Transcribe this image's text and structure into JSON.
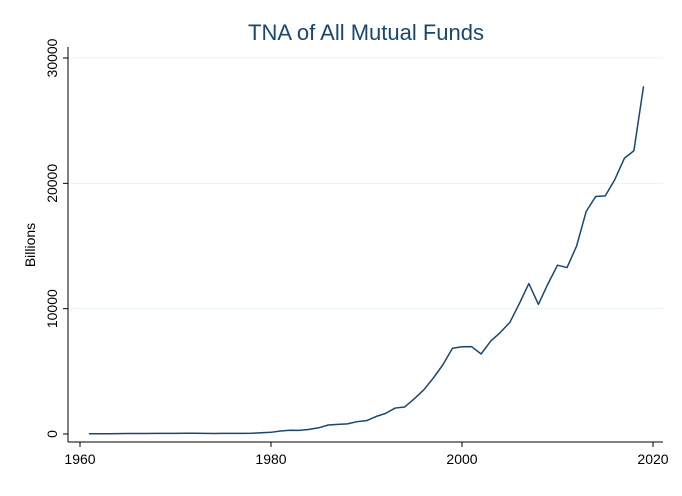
{
  "chart_data": {
    "type": "line",
    "title": "TNA of All Mutual Funds",
    "xlabel": "",
    "ylabel": "Billions",
    "xlim": [
      1960,
      2020
    ],
    "ylim": [
      0,
      30000
    ],
    "xticks": [
      1960,
      1980,
      2000,
      2020
    ],
    "yticks": [
      0,
      10000,
      20000,
      30000
    ],
    "grid": true,
    "legend": "none",
    "line_color": "#1a476f",
    "grid_color": "#eaf2f3",
    "series": [
      {
        "x": [
          1961,
          1962,
          1963,
          1964,
          1965,
          1966,
          1967,
          1968,
          1969,
          1970,
          1971,
          1972,
          1973,
          1974,
          1975,
          1976,
          1977,
          1978,
          1979,
          1980,
          1981,
          1982,
          1983,
          1984,
          1985,
          1986,
          1987,
          1988,
          1989,
          1990,
          1991,
          1992,
          1993,
          1994,
          1995,
          1996,
          1997,
          1998,
          1999,
          2000,
          2001,
          2002,
          2003,
          2004,
          2005,
          2006,
          2007,
          2008,
          2009,
          2010,
          2011,
          2012,
          2013,
          2014,
          2015,
          2016,
          2017,
          2018,
          2019
        ],
        "y": [
          23,
          22,
          25,
          29,
          35,
          35,
          45,
          53,
          48,
          48,
          56,
          60,
          47,
          36,
          46,
          51,
          52,
          57,
          95,
          135,
          240,
          297,
          293,
          371,
          495,
          716,
          770,
          810,
          982,
          1065,
          1395,
          1646,
          2070,
          2155,
          2811,
          3526,
          4468,
          5525,
          6846,
          6965,
          6975,
          6383,
          7403,
          8097,
          8893,
          10398,
          12000,
          10350,
          11980,
          13470,
          13280,
          15000,
          17750,
          18950,
          19000,
          20300,
          22000,
          22600,
          27700
        ]
      }
    ]
  }
}
